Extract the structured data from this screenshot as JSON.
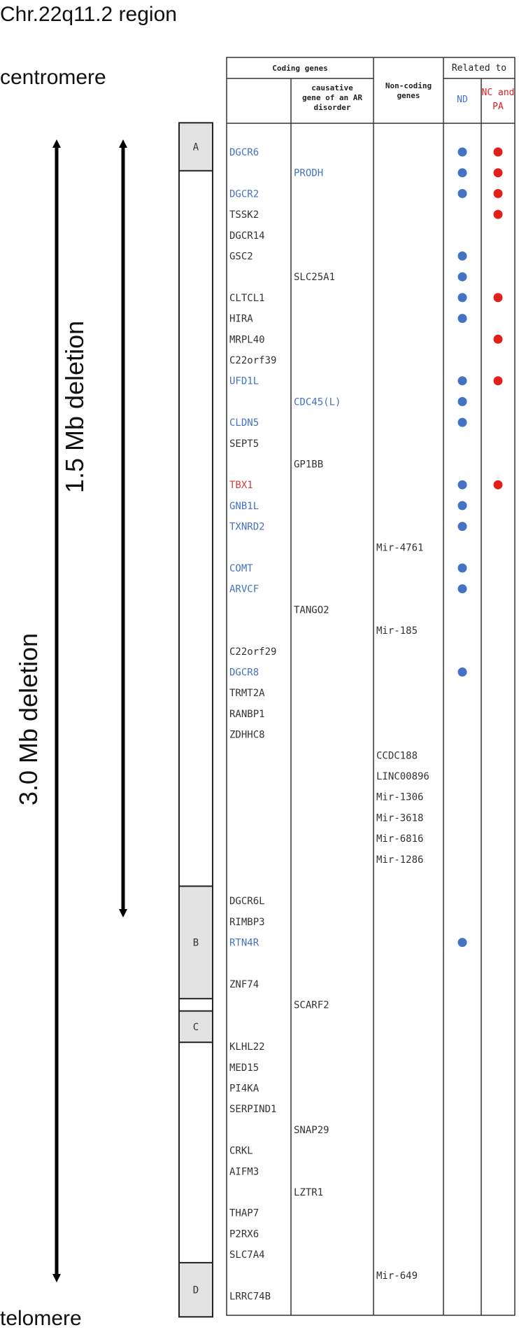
{
  "title": "Chr.22q11.2 region",
  "ends": {
    "top": "centromere",
    "bottom": "telomere"
  },
  "deletions": [
    {
      "name": "3.0 Mb deletion",
      "from_row": 0,
      "to_row": 55.5
    },
    {
      "name": "1.5 Mb deletion",
      "from_row": 0,
      "to_row": 38
    }
  ],
  "headers": {
    "coding_genes": "Coding genes",
    "causative": [
      "causative",
      "gene of an AR",
      "disorder"
    ],
    "non_coding": [
      "Non-coding",
      "genes"
    ],
    "related_to": "Related to",
    "nd": "ND",
    "nc_pa": [
      "NC and",
      "PA"
    ]
  },
  "colors": {
    "nd_blue": "#4472C4",
    "nc_red": "#E0201B",
    "tbx1_red": "#D63B36",
    "gene_dark": "#333333",
    "block_gray": "#E3E3E3"
  },
  "lcr_blocks": [
    {
      "label": "A",
      "start": -1.1,
      "end": 0.7
    },
    {
      "label": "B",
      "start": 35.6,
      "end": 40.5
    },
    {
      "label": "C",
      "start": 41.6,
      "end": 42.6
    },
    {
      "label": "D",
      "start": 53.7,
      "end": 55.8
    }
  ],
  "genes": [
    {
      "name": "DGCR6",
      "col": "coding",
      "row": 0,
      "color": "blue",
      "nd": true,
      "nc": true
    },
    {
      "name": "PRODH",
      "col": "ar",
      "row": 1,
      "color": "blue",
      "nd": true,
      "nc": true
    },
    {
      "name": "DGCR2",
      "col": "coding",
      "row": 2,
      "color": "blue",
      "nd": true,
      "nc": true
    },
    {
      "name": "TSSK2",
      "col": "coding",
      "row": 3,
      "color": "dark",
      "nd": false,
      "nc": true
    },
    {
      "name": "DGCR14",
      "col": "coding",
      "row": 4,
      "color": "dark",
      "nd": false,
      "nc": false
    },
    {
      "name": "GSC2",
      "col": "coding",
      "row": 5,
      "color": "dark",
      "nd": true,
      "nc": false
    },
    {
      "name": "SLC25A1",
      "col": "ar",
      "row": 6,
      "color": "dark",
      "nd": true,
      "nc": false
    },
    {
      "name": "CLTCL1",
      "col": "coding",
      "row": 7,
      "color": "dark",
      "nd": true,
      "nc": true
    },
    {
      "name": "HIRA",
      "col": "coding",
      "row": 8,
      "color": "dark",
      "nd": true,
      "nc": false
    },
    {
      "name": "MRPL40",
      "col": "coding",
      "row": 9,
      "color": "dark",
      "nd": false,
      "nc": true
    },
    {
      "name": "C22orf39",
      "col": "coding",
      "row": 10,
      "color": "dark",
      "nd": false,
      "nc": false
    },
    {
      "name": "UFD1L",
      "col": "coding",
      "row": 11,
      "color": "blue",
      "nd": true,
      "nc": true
    },
    {
      "name": "CDC45(L)",
      "col": "ar",
      "row": 12,
      "color": "blue",
      "nd": true,
      "nc": false
    },
    {
      "name": "CLDN5",
      "col": "coding",
      "row": 13,
      "color": "blue",
      "nd": true,
      "nc": false
    },
    {
      "name": "SEPT5",
      "col": "coding",
      "row": 14,
      "color": "dark",
      "nd": false,
      "nc": false
    },
    {
      "name": "GP1BB",
      "col": "ar",
      "row": 15,
      "color": "dark",
      "nd": false,
      "nc": false
    },
    {
      "name": "TBX1",
      "col": "coding",
      "row": 16,
      "color": "red",
      "nd": true,
      "nc": true
    },
    {
      "name": "GNB1L",
      "col": "coding",
      "row": 17,
      "color": "blue",
      "nd": true,
      "nc": false
    },
    {
      "name": "TXNRD2",
      "col": "coding",
      "row": 18,
      "color": "blue",
      "nd": true,
      "nc": false
    },
    {
      "name": "Mir-4761",
      "col": "noncoding",
      "row": 19,
      "color": "dark",
      "nd": false,
      "nc": false
    },
    {
      "name": "COMT",
      "col": "coding",
      "row": 20,
      "color": "blue",
      "nd": true,
      "nc": false
    },
    {
      "name": "ARVCF",
      "col": "coding",
      "row": 21,
      "color": "blue",
      "nd": true,
      "nc": false
    },
    {
      "name": "TANGO2",
      "col": "ar",
      "row": 22,
      "color": "dark",
      "nd": false,
      "nc": false
    },
    {
      "name": "Mir-185",
      "col": "noncoding",
      "row": 23,
      "color": "dark",
      "nd": false,
      "nc": false
    },
    {
      "name": "C22orf29",
      "col": "coding",
      "row": 24,
      "color": "dark",
      "nd": false,
      "nc": false
    },
    {
      "name": "DGCR8",
      "col": "coding",
      "row": 25,
      "color": "blue",
      "nd": true,
      "nc": false
    },
    {
      "name": "TRMT2A",
      "col": "coding",
      "row": 26,
      "color": "dark",
      "nd": false,
      "nc": false
    },
    {
      "name": "RANBP1",
      "col": "coding",
      "row": 27,
      "color": "dark",
      "nd": false,
      "nc": false
    },
    {
      "name": "ZDHHC8",
      "col": "coding",
      "row": 28,
      "color": "dark",
      "nd": false,
      "nc": false
    },
    {
      "name": "CCDC188",
      "col": "noncoding",
      "row": 29,
      "color": "dark",
      "nd": false,
      "nc": false
    },
    {
      "name": "LINC00896",
      "col": "noncoding",
      "row": 30,
      "color": "dark",
      "nd": false,
      "nc": false
    },
    {
      "name": "Mir-1306",
      "col": "noncoding",
      "row": 31,
      "color": "dark",
      "nd": false,
      "nc": false
    },
    {
      "name": "Mir-3618",
      "col": "noncoding",
      "row": 32,
      "color": "dark",
      "nd": false,
      "nc": false
    },
    {
      "name": "Mir-6816",
      "col": "noncoding",
      "row": 33,
      "color": "dark",
      "nd": false,
      "nc": false
    },
    {
      "name": "Mir-1286",
      "col": "noncoding",
      "row": 34,
      "color": "dark",
      "nd": false,
      "nc": false
    },
    {
      "name": "DGCR6L",
      "col": "coding",
      "row": 36,
      "color": "dark",
      "nd": false,
      "nc": false
    },
    {
      "name": "RIMBP3",
      "col": "coding",
      "row": 37,
      "color": "dark",
      "nd": false,
      "nc": false
    },
    {
      "name": "RTN4R",
      "col": "coding",
      "row": 38,
      "color": "blue",
      "nd": true,
      "nc": false
    },
    {
      "name": "ZNF74",
      "col": "coding",
      "row": 40,
      "color": "dark",
      "nd": false,
      "nc": false
    },
    {
      "name": "SCARF2",
      "col": "ar",
      "row": 41,
      "color": "dark",
      "nd": false,
      "nc": false
    },
    {
      "name": "KLHL22",
      "col": "coding",
      "row": 43,
      "color": "dark",
      "nd": false,
      "nc": false
    },
    {
      "name": "MED15",
      "col": "coding",
      "row": 44,
      "color": "dark",
      "nd": false,
      "nc": false
    },
    {
      "name": "PI4KA",
      "col": "coding",
      "row": 45,
      "color": "dark",
      "nd": false,
      "nc": false
    },
    {
      "name": "SERPIND1",
      "col": "coding",
      "row": 46,
      "color": "dark",
      "nd": false,
      "nc": false
    },
    {
      "name": "SNAP29",
      "col": "ar",
      "row": 47,
      "color": "dark",
      "nd": false,
      "nc": false
    },
    {
      "name": "CRKL",
      "col": "coding",
      "row": 48,
      "color": "dark",
      "nd": false,
      "nc": false
    },
    {
      "name": "AIFM3",
      "col": "coding",
      "row": 49,
      "color": "dark",
      "nd": false,
      "nc": false
    },
    {
      "name": "LZTR1",
      "col": "ar",
      "row": 50,
      "color": "dark",
      "nd": false,
      "nc": false
    },
    {
      "name": "THAP7",
      "col": "coding",
      "row": 51,
      "color": "dark",
      "nd": false,
      "nc": false
    },
    {
      "name": "P2RX6",
      "col": "coding",
      "row": 52,
      "color": "dark",
      "nd": false,
      "nc": false
    },
    {
      "name": "SLC7A4",
      "col": "coding",
      "row": 53,
      "color": "dark",
      "nd": false,
      "nc": false
    },
    {
      "name": "Mir-649",
      "col": "noncoding",
      "row": 54,
      "color": "dark",
      "nd": false,
      "nc": false
    },
    {
      "name": "LRRC74B",
      "col": "coding",
      "row": 55,
      "color": "dark",
      "nd": false,
      "nc": false
    }
  ]
}
